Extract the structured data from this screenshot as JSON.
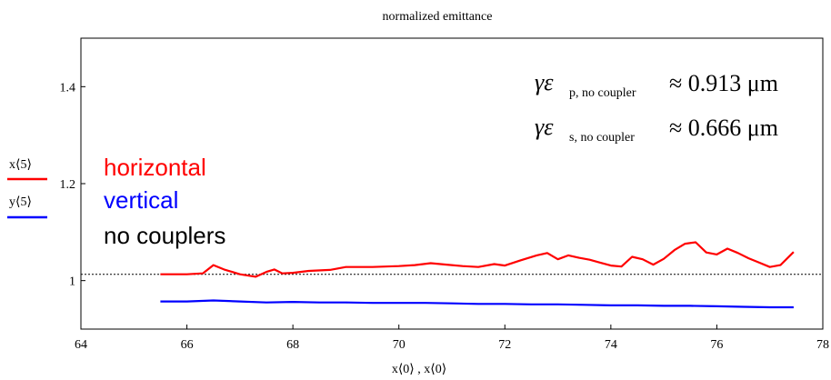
{
  "chart_data": {
    "type": "line",
    "title": "normalized emittance",
    "xlabel": "x⟨0⟩ , x⟨0⟩",
    "xlim": [
      64,
      78
    ],
    "ylim": [
      0.9,
      1.5
    ],
    "x_ticks": [
      "64",
      "66",
      "68",
      "70",
      "72",
      "74",
      "76",
      "78"
    ],
    "y_ticks": [
      {
        "value": 1.0,
        "label": "1"
      },
      {
        "value": 1.2,
        "label": "1.2"
      },
      {
        "value": 1.4,
        "label": "1.4"
      }
    ],
    "legend": {
      "position": "left",
      "y_label_top": "x⟨5⟩",
      "y_label_bottom": "y⟨5⟩",
      "entries": [
        {
          "text": "horizontal",
          "color": "#ff0000"
        },
        {
          "text": "vertical",
          "color": "#0000ff"
        },
        {
          "text": "no couplers",
          "color": "#000000"
        }
      ]
    },
    "annotations": [
      {
        "symbol": "γε",
        "subscript": "p, no coupler",
        "value": "≈ 0.913 μm"
      },
      {
        "symbol": "γε",
        "subscript": "s, no coupler",
        "value": "≈ 0.666 μm"
      }
    ],
    "reference_line": {
      "y": 1.013,
      "style": "dotted",
      "color": "#000000"
    },
    "series": [
      {
        "color": "#ff0000",
        "x": [
          65.5,
          66.0,
          66.3,
          66.5,
          66.7,
          67.0,
          67.3,
          67.5,
          67.65,
          67.8,
          68.0,
          68.3,
          68.7,
          69.0,
          69.5,
          70.0,
          70.3,
          70.6,
          70.9,
          71.2,
          71.5,
          71.8,
          72.0,
          72.3,
          72.6,
          72.8,
          73.0,
          73.2,
          73.4,
          73.6,
          73.8,
          74.0,
          74.2,
          74.4,
          74.6,
          74.8,
          75.0,
          75.2,
          75.4,
          75.6,
          75.8,
          76.0,
          76.2,
          76.4,
          76.6,
          76.8,
          77.0,
          77.2,
          77.45
        ],
        "values": [
          1.013,
          1.013,
          1.015,
          1.032,
          1.023,
          1.013,
          1.008,
          1.018,
          1.023,
          1.015,
          1.016,
          1.02,
          1.022,
          1.028,
          1.028,
          1.03,
          1.032,
          1.036,
          1.033,
          1.03,
          1.028,
          1.034,
          1.031,
          1.042,
          1.052,
          1.057,
          1.044,
          1.052,
          1.047,
          1.043,
          1.037,
          1.031,
          1.029,
          1.049,
          1.044,
          1.033,
          1.045,
          1.063,
          1.076,
          1.079,
          1.058,
          1.054,
          1.066,
          1.057,
          1.046,
          1.037,
          1.028,
          1.032,
          1.059
        ]
      },
      {
        "color": "#0000ff",
        "x": [
          65.5,
          66.0,
          66.5,
          67.0,
          67.5,
          68.0,
          68.5,
          69.0,
          69.5,
          70.0,
          70.5,
          71.0,
          71.5,
          72.0,
          72.5,
          73.0,
          73.5,
          74.0,
          74.5,
          75.0,
          75.5,
          76.0,
          76.5,
          77.0,
          77.45
        ],
        "values": [
          0.957,
          0.957,
          0.959,
          0.957,
          0.955,
          0.956,
          0.955,
          0.955,
          0.954,
          0.954,
          0.954,
          0.953,
          0.952,
          0.952,
          0.951,
          0.951,
          0.95,
          0.949,
          0.949,
          0.948,
          0.948,
          0.947,
          0.946,
          0.945,
          0.945
        ]
      }
    ]
  }
}
